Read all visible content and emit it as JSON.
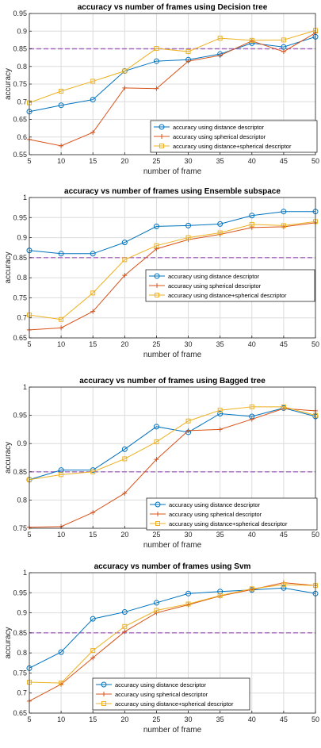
{
  "chart_data": [
    {
      "type": "line",
      "title": "accuracy vs number of frames using Decision tree",
      "xlabel": "number of frame",
      "ylabel": "accuracy",
      "x": [
        5,
        10,
        15,
        20,
        25,
        30,
        35,
        40,
        45,
        50
      ],
      "xlim": [
        5,
        50
      ],
      "ylim": [
        0.55,
        0.95
      ],
      "xticks": [
        "5",
        "10",
        "15",
        "20",
        "25",
        "30",
        "35",
        "40",
        "45",
        "50"
      ],
      "yticks": [
        "0.55",
        "0.6",
        "0.65",
        "0.7",
        "0.75",
        "0.8",
        "0.85",
        "0.9",
        "0.95"
      ],
      "ytick_values": [
        0.55,
        0.6,
        0.65,
        0.7,
        0.75,
        0.8,
        0.85,
        0.9,
        0.95
      ],
      "grid": true,
      "legend_position": "bottom-right",
      "reference_line": 0.85,
      "series": [
        {
          "name": "accuracy using distance descriptor",
          "values": [
            0.672,
            0.69,
            0.706,
            0.787,
            0.815,
            0.819,
            0.835,
            0.866,
            0.855,
            0.884
          ]
        },
        {
          "name": "accuracy using spherical descriptor",
          "values": [
            0.593,
            0.575,
            0.613,
            0.739,
            0.737,
            0.815,
            0.831,
            0.872,
            0.842,
            0.895
          ]
        },
        {
          "name": "accuracy using distance+spherical descriptor",
          "values": [
            0.697,
            0.73,
            0.758,
            0.787,
            0.851,
            0.842,
            0.88,
            0.874,
            0.875,
            0.902
          ]
        }
      ]
    },
    {
      "type": "line",
      "title": "accuracy vs number of frames using Ensemble subspace",
      "xlabel": "number of frame",
      "ylabel": "accuracy",
      "x": [
        5,
        10,
        15,
        20,
        25,
        30,
        35,
        40,
        45,
        50
      ],
      "xlim": [
        5,
        50
      ],
      "ylim": [
        0.65,
        1
      ],
      "xticks": [
        "5",
        "10",
        "15",
        "20",
        "25",
        "30",
        "35",
        "40",
        "45",
        "50"
      ],
      "yticks": [
        "0.65",
        "0.7",
        "0.75",
        "0.8",
        "0.85",
        "0.9",
        "0.95",
        "1"
      ],
      "ytick_values": [
        0.65,
        0.7,
        0.75,
        0.8,
        0.85,
        0.9,
        0.95,
        1.0
      ],
      "grid": true,
      "legend_position": "bottom-right",
      "reference_line": 0.85,
      "series": [
        {
          "name": "accuracy using distance descriptor",
          "values": [
            0.868,
            0.86,
            0.86,
            0.888,
            0.928,
            0.93,
            0.934,
            0.955,
            0.965,
            0.965
          ]
        },
        {
          "name": "accuracy using spherical descriptor",
          "values": [
            0.67,
            0.675,
            0.716,
            0.806,
            0.872,
            0.895,
            0.908,
            0.925,
            0.927,
            0.937
          ]
        },
        {
          "name": "accuracy using distance+spherical descriptor",
          "values": [
            0.707,
            0.696,
            0.762,
            0.845,
            0.88,
            0.9,
            0.912,
            0.933,
            0.93,
            0.94
          ]
        }
      ]
    },
    {
      "type": "line",
      "title": "accuracy vs number of frames using Bagged tree",
      "xlabel": "number of frame",
      "ylabel": "accuracy",
      "x": [
        5,
        10,
        15,
        20,
        25,
        30,
        35,
        40,
        45,
        50
      ],
      "xlim": [
        5,
        50
      ],
      "ylim": [
        0.75,
        1
      ],
      "xticks": [
        "5",
        "10",
        "15",
        "20",
        "25",
        "30",
        "35",
        "40",
        "45",
        "50"
      ],
      "yticks": [
        "0.75",
        "0.8",
        "0.85",
        "0.9",
        "0.95",
        "1"
      ],
      "ytick_values": [
        0.75,
        0.8,
        0.85,
        0.9,
        0.95,
        1.0
      ],
      "grid": true,
      "legend_position": "bottom-right",
      "reference_line": 0.85,
      "series": [
        {
          "name": "accuracy using distance descriptor",
          "values": [
            0.836,
            0.853,
            0.853,
            0.89,
            0.93,
            0.92,
            0.953,
            0.948,
            0.963,
            0.948
          ]
        },
        {
          "name": "accuracy using spherical descriptor",
          "values": [
            0.752,
            0.753,
            0.778,
            0.812,
            0.872,
            0.923,
            0.925,
            0.943,
            0.962,
            0.958
          ]
        },
        {
          "name": "accuracy using distance+spherical descriptor",
          "values": [
            0.836,
            0.845,
            0.85,
            0.873,
            0.903,
            0.94,
            0.959,
            0.965,
            0.965,
            0.95
          ]
        }
      ]
    },
    {
      "type": "line",
      "title": "accuracy vs number of frames using Svm",
      "xlabel": "number of frame",
      "ylabel": "accuracy",
      "x": [
        5,
        10,
        15,
        20,
        25,
        30,
        35,
        40,
        45,
        50
      ],
      "xlim": [
        5,
        50
      ],
      "ylim": [
        0.65,
        1
      ],
      "xticks": [
        "5",
        "10",
        "15",
        "20",
        "25",
        "30",
        "35",
        "40",
        "45",
        "50"
      ],
      "yticks": [
        "0.65",
        "0.7",
        "0.75",
        "0.8",
        "0.85",
        "0.9",
        "0.95",
        "1"
      ],
      "ytick_values": [
        0.65,
        0.7,
        0.75,
        0.8,
        0.85,
        0.9,
        0.95,
        1.0
      ],
      "grid": true,
      "legend_position": "bottom-left",
      "reference_line": 0.85,
      "series": [
        {
          "name": "accuracy using distance descriptor",
          "values": [
            0.762,
            0.802,
            0.885,
            0.902,
            0.925,
            0.948,
            0.953,
            0.957,
            0.962,
            0.948
          ]
        },
        {
          "name": "accuracy using spherical descriptor",
          "values": [
            0.68,
            0.722,
            0.788,
            0.853,
            0.9,
            0.92,
            0.942,
            0.958,
            0.975,
            0.968
          ]
        },
        {
          "name": "accuracy using distance+spherical descriptor",
          "values": [
            0.727,
            0.725,
            0.806,
            0.866,
            0.906,
            0.922,
            0.943,
            0.96,
            0.97,
            0.968
          ]
        }
      ]
    }
  ],
  "colors": {
    "series": [
      "#0072BD",
      "#D95319",
      "#EDB120"
    ],
    "reference_line": "#A569BD",
    "grid": "#dcdcdc",
    "axis": "#262626"
  }
}
